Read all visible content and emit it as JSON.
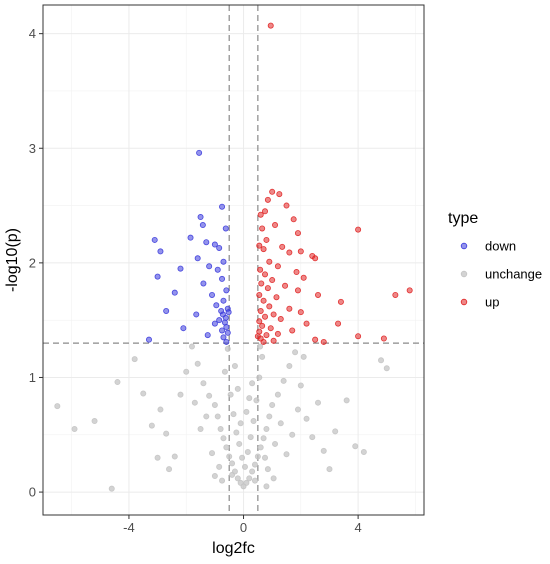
{
  "chart_data": {
    "type": "scatter",
    "title": "",
    "xlabel": "log2fc",
    "ylabel": "-log10(p)",
    "xlim": [
      -7.0,
      6.3
    ],
    "ylim": [
      -0.2,
      4.25
    ],
    "x_ticks": [
      -4,
      0,
      4
    ],
    "x_tick_labels": [
      "-4",
      "0",
      "4"
    ],
    "y_ticks": [
      0,
      1,
      2,
      3,
      4
    ],
    "y_tick_labels": [
      "0",
      "1",
      "2",
      "3",
      "4"
    ],
    "grid": true,
    "thresholds": {
      "log2fc": [
        -0.5,
        0.5
      ],
      "neg_log10_p": 1.3
    },
    "legend": {
      "title": "type",
      "placement": "right",
      "entries": [
        "down",
        "unchange",
        "up"
      ]
    },
    "colors": {
      "down": "#3b3bdc",
      "unchange": "#c4c4c4",
      "up": "#e02424"
    },
    "series": [
      {
        "name": "down",
        "points": [
          [
            -1.55,
            2.96
          ],
          [
            -0.75,
            2.49
          ],
          [
            -3.1,
            2.2
          ],
          [
            -1.5,
            2.4
          ],
          [
            -1.42,
            2.33
          ],
          [
            -0.62,
            2.3
          ],
          [
            -1.85,
            2.22
          ],
          [
            -1.3,
            2.18
          ],
          [
            -1.0,
            2.16
          ],
          [
            -0.85,
            2.13
          ],
          [
            -2.9,
            2.1
          ],
          [
            -1.6,
            2.04
          ],
          [
            -0.7,
            2.01
          ],
          [
            -1.2,
            1.97
          ],
          [
            -0.9,
            1.94
          ],
          [
            -2.2,
            1.95
          ],
          [
            -0.75,
            1.86
          ],
          [
            -3.0,
            1.88
          ],
          [
            -1.4,
            1.82
          ],
          [
            -0.6,
            1.76
          ],
          [
            -2.4,
            1.74
          ],
          [
            -1.1,
            1.72
          ],
          [
            -0.7,
            1.67
          ],
          [
            -0.95,
            1.63
          ],
          [
            -0.55,
            1.6
          ],
          [
            -0.78,
            1.58
          ],
          [
            -1.65,
            1.55
          ],
          [
            -2.7,
            1.58
          ],
          [
            -0.62,
            1.52
          ],
          [
            -0.72,
            1.55
          ],
          [
            -0.85,
            1.5
          ],
          [
            -1.0,
            1.47
          ],
          [
            -0.6,
            1.44
          ],
          [
            -2.1,
            1.43
          ],
          [
            -0.75,
            1.41
          ],
          [
            -0.55,
            1.39
          ],
          [
            -1.25,
            1.37
          ],
          [
            -0.7,
            1.35
          ],
          [
            -3.3,
            1.33
          ],
          [
            -0.6,
            1.31
          ],
          [
            -0.52,
            1.57
          ],
          [
            -0.65,
            1.48
          ]
        ]
      },
      {
        "name": "unchange",
        "points": [
          [
            -6.5,
            0.75
          ],
          [
            -5.2,
            0.62
          ],
          [
            -5.9,
            0.55
          ],
          [
            -4.6,
            0.03
          ],
          [
            -4.4,
            0.96
          ],
          [
            -3.5,
            0.86
          ],
          [
            -2.9,
            0.72
          ],
          [
            -3.2,
            0.58
          ],
          [
            -2.7,
            0.51
          ],
          [
            -2.6,
            0.2
          ],
          [
            -2.4,
            0.31
          ],
          [
            -3.8,
            1.16
          ],
          [
            -1.8,
            1.27
          ],
          [
            -1.6,
            1.12
          ],
          [
            -1.4,
            0.95
          ],
          [
            -1.2,
            0.84
          ],
          [
            -1.0,
            0.76
          ],
          [
            -0.9,
            0.66
          ],
          [
            -0.8,
            0.55
          ],
          [
            -0.7,
            0.47
          ],
          [
            -0.6,
            0.39
          ],
          [
            -0.5,
            0.31
          ],
          [
            -0.4,
            0.25
          ],
          [
            -0.3,
            0.18
          ],
          [
            -0.2,
            0.12
          ],
          [
            -0.1,
            0.08
          ],
          [
            0.0,
            0.05
          ],
          [
            0.1,
            0.08
          ],
          [
            0.2,
            0.12
          ],
          [
            0.3,
            0.18
          ],
          [
            0.4,
            0.24
          ],
          [
            0.5,
            0.31
          ],
          [
            0.6,
            0.39
          ],
          [
            0.7,
            0.47
          ],
          [
            0.8,
            0.55
          ],
          [
            0.9,
            0.66
          ],
          [
            1.0,
            0.76
          ],
          [
            1.2,
            0.85
          ],
          [
            1.4,
            0.97
          ],
          [
            1.6,
            1.1
          ],
          [
            1.8,
            1.22
          ],
          [
            2.0,
            0.93
          ],
          [
            2.2,
            0.64
          ],
          [
            2.4,
            0.48
          ],
          [
            2.6,
            0.78
          ],
          [
            2.8,
            0.36
          ],
          [
            3.2,
            0.53
          ],
          [
            3.6,
            0.8
          ],
          [
            3.9,
            0.4
          ],
          [
            4.8,
            1.15
          ],
          [
            5.0,
            1.08
          ],
          [
            4.2,
            0.35
          ],
          [
            -1.5,
            0.55
          ],
          [
            -1.1,
            0.34
          ],
          [
            -0.85,
            0.22
          ],
          [
            -0.65,
            1.05
          ],
          [
            -0.45,
            0.85
          ],
          [
            -0.35,
            0.68
          ],
          [
            -0.25,
            0.52
          ],
          [
            -0.15,
            0.42
          ],
          [
            -0.05,
            0.3
          ],
          [
            0.05,
            0.22
          ],
          [
            0.15,
            0.35
          ],
          [
            0.25,
            0.48
          ],
          [
            0.35,
            0.62
          ],
          [
            0.45,
            0.8
          ],
          [
            0.55,
            1.0
          ],
          [
            0.65,
            1.18
          ],
          [
            0.75,
            0.3
          ],
          [
            0.85,
            0.2
          ],
          [
            1.1,
            0.42
          ],
          [
            1.3,
            0.6
          ],
          [
            1.5,
            0.33
          ],
          [
            1.7,
            0.5
          ],
          [
            -1.7,
            0.78
          ],
          [
            -1.3,
            0.66
          ],
          [
            -2.0,
            1.05
          ],
          [
            -2.2,
            0.85
          ],
          [
            2.1,
            1.18
          ],
          [
            1.9,
            0.72
          ],
          [
            -0.55,
            1.25
          ],
          [
            0.58,
            1.27
          ],
          [
            -0.3,
            1.1
          ],
          [
            0.3,
            0.95
          ],
          [
            -0.1,
            0.6
          ],
          [
            0.1,
            0.7
          ],
          [
            -0.2,
            0.9
          ],
          [
            0.2,
            0.82
          ],
          [
            -0.4,
            0.15
          ],
          [
            0.4,
            0.1
          ],
          [
            -0.75,
            0.1
          ],
          [
            0.8,
            0.05
          ],
          [
            -1.0,
            0.14
          ],
          [
            1.05,
            0.12
          ],
          [
            -3.0,
            0.3
          ],
          [
            3.0,
            0.2
          ]
        ]
      },
      {
        "name": "up",
        "points": [
          [
            0.95,
            4.07
          ],
          [
            1.0,
            2.62
          ],
          [
            1.25,
            2.6
          ],
          [
            0.85,
            2.55
          ],
          [
            1.5,
            2.5
          ],
          [
            0.75,
            2.45
          ],
          [
            0.6,
            2.42
          ],
          [
            1.75,
            2.38
          ],
          [
            1.1,
            2.33
          ],
          [
            0.65,
            2.3
          ],
          [
            4.0,
            2.29
          ],
          [
            1.9,
            2.26
          ],
          [
            0.8,
            2.2
          ],
          [
            0.55,
            2.15
          ],
          [
            1.35,
            2.14
          ],
          [
            0.7,
            2.12
          ],
          [
            2.0,
            2.1
          ],
          [
            1.6,
            2.09
          ],
          [
            2.4,
            2.06
          ],
          [
            2.5,
            2.04
          ],
          [
            0.9,
            2.01
          ],
          [
            1.2,
            1.97
          ],
          [
            0.58,
            1.94
          ],
          [
            1.85,
            1.92
          ],
          [
            0.75,
            1.9
          ],
          [
            2.1,
            1.87
          ],
          [
            1.0,
            1.85
          ],
          [
            0.62,
            1.82
          ],
          [
            1.45,
            1.8
          ],
          [
            0.85,
            1.78
          ],
          [
            1.9,
            1.76
          ],
          [
            5.8,
            1.76
          ],
          [
            0.55,
            1.72
          ],
          [
            2.6,
            1.72
          ],
          [
            5.3,
            1.72
          ],
          [
            1.15,
            1.7
          ],
          [
            0.7,
            1.67
          ],
          [
            3.4,
            1.66
          ],
          [
            0.9,
            1.62
          ],
          [
            1.6,
            1.6
          ],
          [
            0.6,
            1.58
          ],
          [
            2.0,
            1.57
          ],
          [
            1.05,
            1.55
          ],
          [
            0.75,
            1.53
          ],
          [
            1.3,
            1.51
          ],
          [
            0.55,
            1.49
          ],
          [
            2.2,
            1.47
          ],
          [
            3.3,
            1.47
          ],
          [
            0.65,
            1.45
          ],
          [
            0.95,
            1.43
          ],
          [
            1.7,
            1.41
          ],
          [
            0.55,
            1.4
          ],
          [
            1.2,
            1.38
          ],
          [
            0.8,
            1.37
          ],
          [
            4.0,
            1.36
          ],
          [
            4.9,
            1.34
          ],
          [
            0.6,
            1.34
          ],
          [
            2.5,
            1.33
          ],
          [
            1.05,
            1.32
          ],
          [
            2.8,
            1.31
          ],
          [
            0.7,
            1.31
          ],
          [
            0.5,
            1.36
          ]
        ]
      }
    ]
  }
}
